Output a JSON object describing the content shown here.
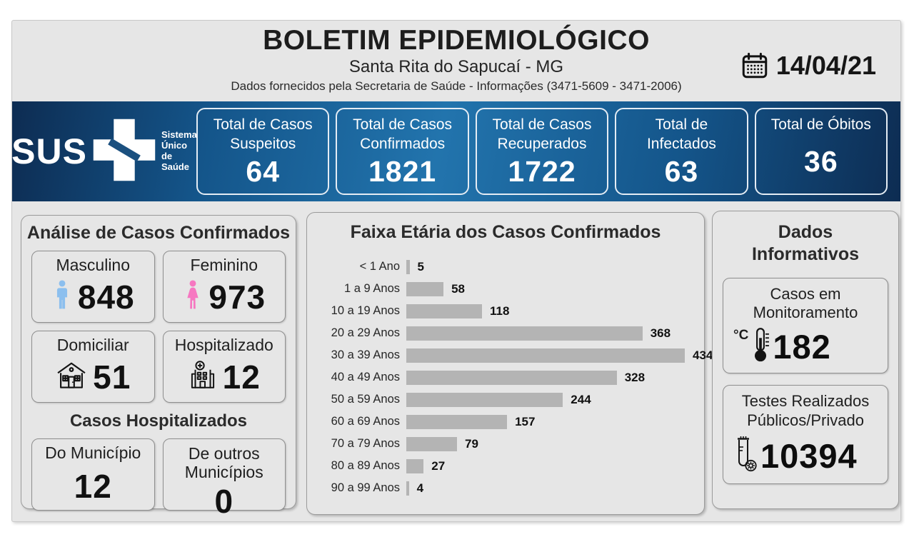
{
  "header": {
    "title": "BOLETIM EPIDEMIOLÓGICO",
    "subtitle": "Santa Rita do Sapucaí - MG",
    "info_line": "Dados fornecidos pela Secretaria de Saúde - Informações (3471-5609 - 3471-2006)",
    "date": "14/04/21"
  },
  "banner": {
    "logo": {
      "text": "SUS",
      "caption": "Sistema Único de Saúde"
    },
    "cards": [
      {
        "label": "Total de Casos Suspeitos",
        "value": "64"
      },
      {
        "label": "Total de Casos Confirmados",
        "value": "1821"
      },
      {
        "label": "Total de Casos Recuperados",
        "value": "1722"
      },
      {
        "label": "Total de Infectados",
        "value": "63"
      },
      {
        "label": "Total de Óbitos",
        "value": "36"
      }
    ]
  },
  "analysis": {
    "title": "Análise de Casos Confirmados",
    "cards": [
      {
        "label": "Masculino",
        "value": "848",
        "icon": "male-icon"
      },
      {
        "label": "Feminino",
        "value": "973",
        "icon": "female-icon"
      },
      {
        "label": "Domiciliar",
        "value": "51",
        "icon": "house-icon"
      },
      {
        "label": "Hospitalizado",
        "value": "12",
        "icon": "hospital-icon"
      }
    ],
    "hospitalized": {
      "title": "Casos Hospitalizados",
      "cards": [
        {
          "label": "Do Município",
          "value": "12"
        },
        {
          "label": "De outros Municípios",
          "value": "0"
        }
      ]
    }
  },
  "chart_data": {
    "type": "bar",
    "orientation": "horizontal",
    "title": "Faixa Etária dos Casos Confirmados",
    "categories": [
      "< 1 Ano",
      "1 a 9 Anos",
      "10 a 19 Anos",
      "20 a 29 Anos",
      "30 a 39 Anos",
      "40 a 49 Anos",
      "50 a 59 Anos",
      "60 a 69 Anos",
      "70 a 79 Anos",
      "80 a 89 Anos",
      "90 a 99 Anos"
    ],
    "values": [
      5,
      58,
      118,
      368,
      434,
      328,
      244,
      157,
      79,
      27,
      4
    ],
    "xlim": [
      0,
      434
    ],
    "bar_color": "#b4b4b4",
    "data_labels": true,
    "grid": false,
    "legend": false
  },
  "informative": {
    "title": "Dados Informativos",
    "cards": [
      {
        "label": "Casos em Monitoramento",
        "value": "182",
        "icon": "thermometer-icon",
        "unit": "°C"
      },
      {
        "label": "Testes Realizados Públicos/Privado",
        "value": "10394",
        "icon": "test-tube-icon"
      }
    ]
  },
  "colors": {
    "banner_dark": "#0d2c52",
    "banner_mid": "#14558a",
    "banner_light": "#2274ad",
    "male": "#8cbfee",
    "female": "#f677c1",
    "bar": "#b4b4b4",
    "icon_dark": "#131313"
  }
}
